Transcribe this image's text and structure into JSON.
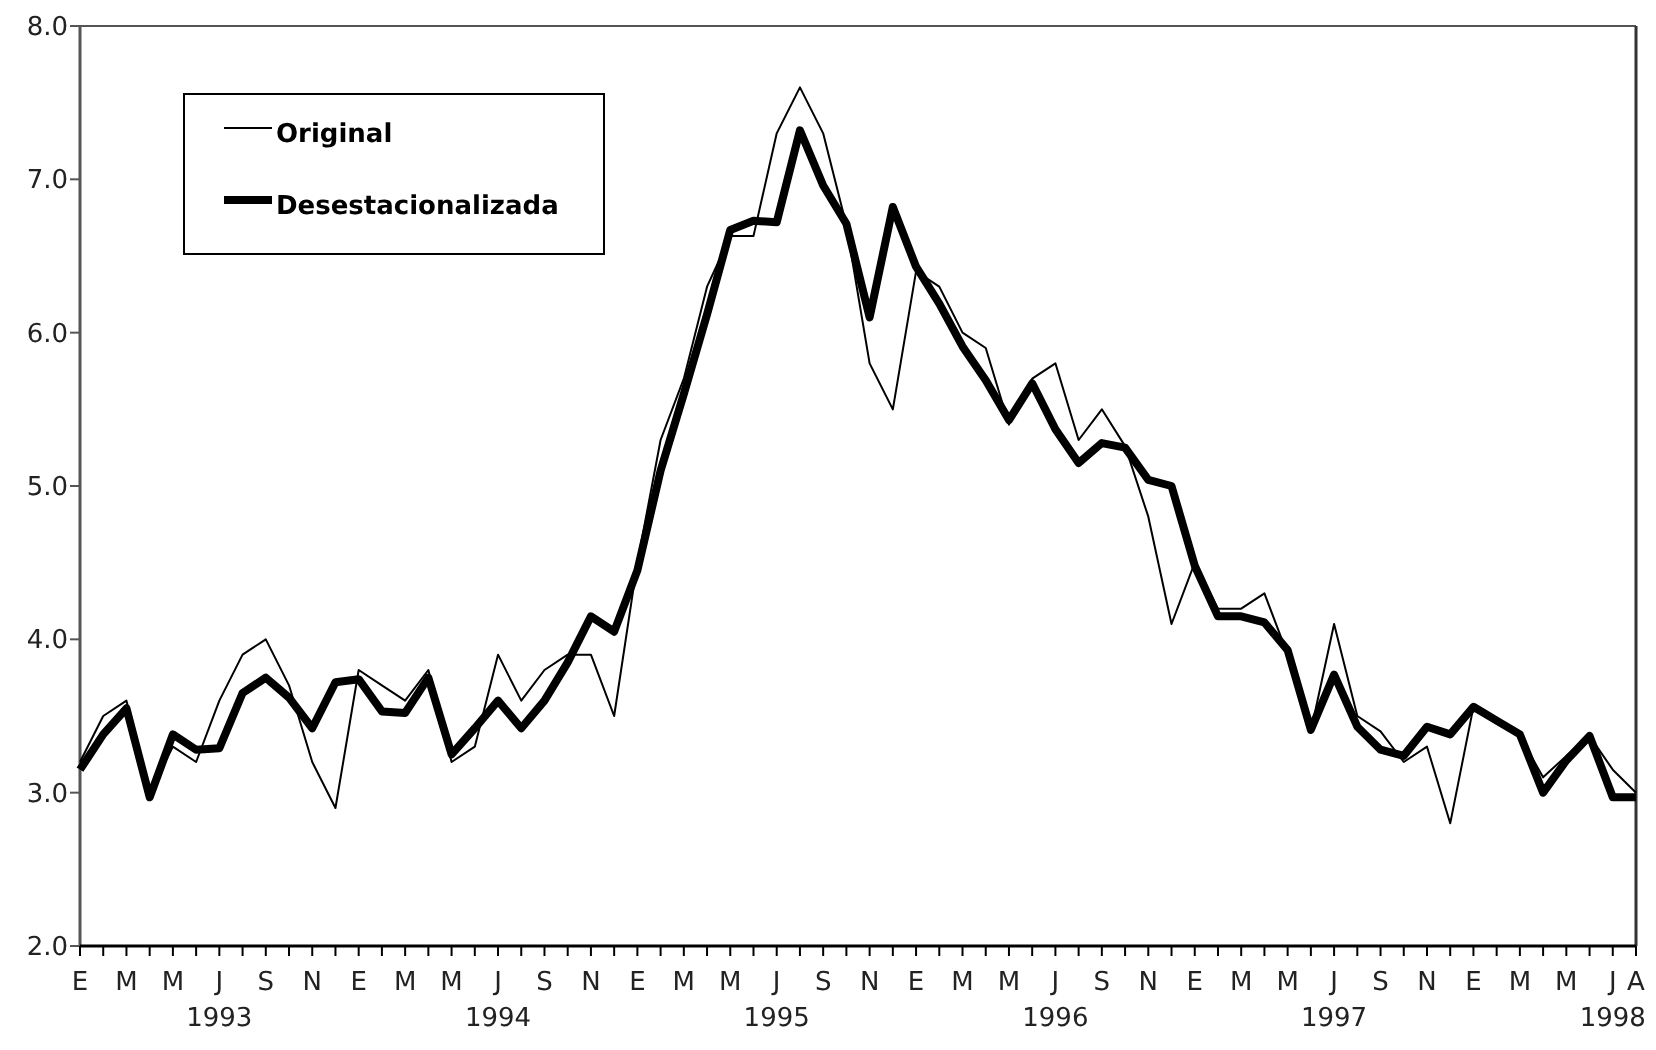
{
  "chart_data": {
    "type": "line",
    "categories": [
      "E",
      null,
      "M",
      null,
      "M",
      null,
      "J\n1993",
      null,
      "S",
      null,
      "N",
      null,
      "E",
      null,
      "M",
      null,
      "M",
      null,
      "J\n1994",
      null,
      "S",
      null,
      "N",
      null,
      "E",
      null,
      "M",
      null,
      "M",
      null,
      "J\n1995",
      null,
      "S",
      null,
      "N",
      null,
      "E",
      null,
      "M",
      null,
      "M",
      null,
      "J\n1996",
      null,
      "S",
      null,
      "N",
      null,
      "E",
      null,
      "M",
      null,
      "M",
      null,
      "J\n1997",
      null,
      "S",
      null,
      "N",
      null,
      "E",
      null,
      "M",
      null,
      "M",
      null,
      "J\n1998",
      "A"
    ],
    "series": [
      {
        "name": "Original",
        "color": "#000000",
        "values": [
          3.2,
          3.5,
          3.6,
          3.0,
          3.3,
          3.2,
          3.6,
          3.9,
          4.0,
          3.7,
          3.2,
          2.9,
          3.8,
          3.7,
          3.6,
          3.8,
          3.2,
          3.3,
          3.9,
          3.6,
          3.8,
          3.9,
          3.9,
          3.5,
          4.5,
          5.3,
          5.7,
          6.3,
          6.63,
          6.63,
          7.3,
          7.6,
          7.3,
          6.7,
          5.8,
          5.5,
          6.4,
          6.3,
          6.0,
          5.9,
          5.4,
          5.7,
          5.8,
          5.3,
          5.5,
          5.26,
          4.8,
          4.1,
          4.5,
          4.2,
          4.2,
          4.3,
          3.9,
          3.4,
          4.1,
          3.5,
          3.4,
          3.2,
          3.3,
          2.8,
          3.56,
          3.45,
          3.37,
          3.1,
          3.24,
          3.37,
          3.15,
          3.0
        ]
      },
      {
        "name": "Desestacionalizada",
        "color": "#000000",
        "values": [
          3.15,
          3.38,
          3.55,
          2.97,
          3.38,
          3.28,
          3.29,
          3.65,
          3.75,
          3.62,
          3.42,
          3.72,
          3.74,
          3.53,
          3.52,
          3.75,
          3.25,
          3.42,
          3.6,
          3.42,
          3.6,
          3.85,
          4.15,
          4.05,
          4.45,
          5.1,
          5.6,
          6.12,
          6.67,
          6.73,
          6.72,
          7.32,
          6.96,
          6.71,
          6.1,
          6.82,
          6.43,
          6.19,
          5.91,
          5.69,
          5.43,
          5.67,
          5.37,
          5.15,
          5.28,
          5.25,
          5.04,
          5.0,
          4.48,
          4.15,
          4.15,
          4.11,
          3.93,
          3.41,
          3.77,
          3.43,
          3.28,
          3.24,
          3.43,
          3.38,
          3.56,
          3.47,
          3.38,
          3.0,
          3.21,
          3.37,
          2.97,
          2.97
        ]
      }
    ],
    "ylim": [
      2,
      8
    ],
    "yticks": [
      {
        "value": 2,
        "label": "2.0"
      },
      {
        "value": 3,
        "label": "3.0"
      },
      {
        "value": 4,
        "label": "4.0"
      },
      {
        "value": 5,
        "label": "5.0"
      },
      {
        "value": 6,
        "label": "6.0"
      },
      {
        "value": 7,
        "label": "7.0"
      },
      {
        "value": 8,
        "label": "8.0"
      }
    ],
    "legend": "top left",
    "grid": false,
    "marker": "none",
    "line_style": "solid"
  }
}
